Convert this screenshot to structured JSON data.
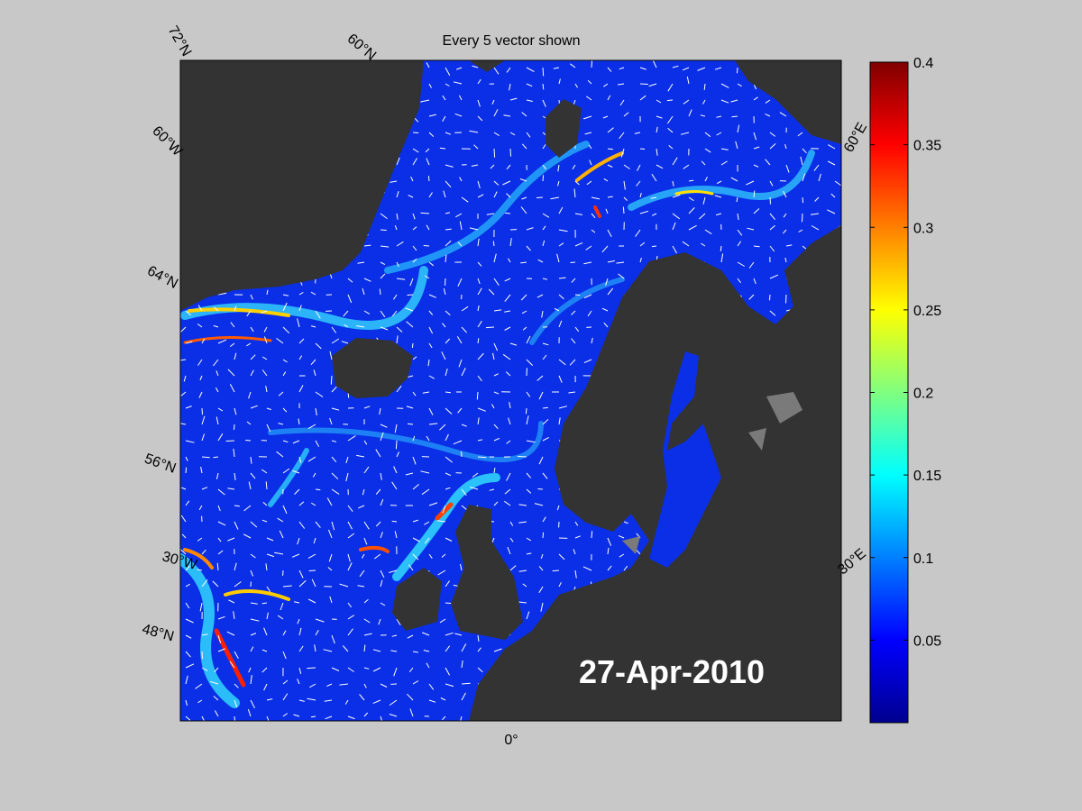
{
  "title": "Every 5 vector shown",
  "date_label": "27-Apr-2010",
  "graticule_labels": [
    "72°N",
    "60°N",
    "60°W",
    "64°N",
    "56°N",
    "30°W",
    "48°N",
    "0°",
    "60°E",
    "30°E"
  ],
  "colorbar": {
    "lim": [
      0,
      0.4
    ],
    "ticks": [
      0.05,
      0.1,
      0.15,
      0.2,
      0.25,
      0.3,
      0.35,
      0.4
    ]
  }
}
